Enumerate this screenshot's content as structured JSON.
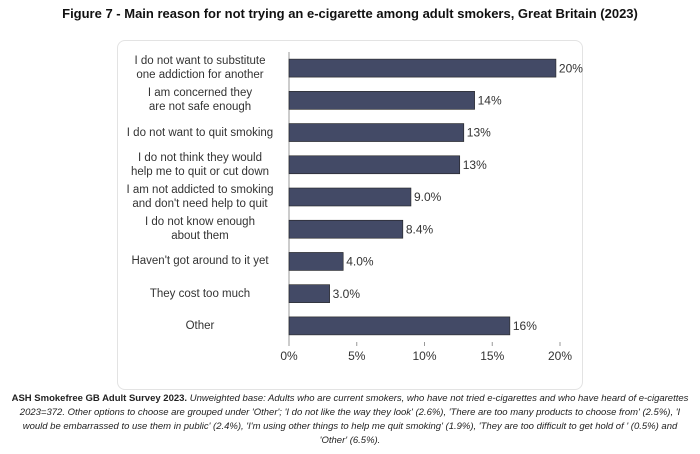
{
  "chart_data": {
    "type": "barh",
    "title": "Figure 7 - Main reason for not trying an e-cigarette among adult smokers, Great Britain (2023)",
    "categories": [
      "I do not want to substitute\none addiction for another",
      "I am concerned they\nare not safe enough",
      "I do not want to quit smoking",
      "I do not think they would\nhelp me to quit or cut down",
      "I am not addicted to smoking\nand don't need help to quit",
      "I do not know enough\nabout them",
      "Haven't got around to it yet",
      "They cost too much",
      "Other"
    ],
    "values": [
      19.7,
      13.7,
      12.9,
      12.6,
      9.0,
      8.4,
      4.0,
      3.0,
      16.3
    ],
    "value_labels": [
      "20%",
      "14%",
      "13%",
      "13%",
      "9.0%",
      "8.4%",
      "4.0%",
      "3.0%",
      "16%"
    ],
    "color": "#434a66",
    "xlim": [
      0,
      20
    ],
    "xticks": [
      {
        "value": 0,
        "label": "0%"
      },
      {
        "value": 5,
        "label": "5%"
      },
      {
        "value": 10,
        "label": "10%"
      },
      {
        "value": 15,
        "label": "15%"
      },
      {
        "value": 20,
        "label": "20%"
      }
    ],
    "source": "ASH Smokefree GB Adult Survey 2023.",
    "note": "Unweighted base: Adults who are current smokers, who have not tried e-cigarettes and who have heard of e-cigarettes 2023=372. Other options to choose are grouped under 'Other'; 'I do not like the way they look' (2.6%), 'There are too many products to choose from' (2.5%), 'I would be embarrassed to use them in public' (2.4%), 'I'm using other things to help me quit smoking' (1.9%), 'They are too difficult to get hold of ' (0.5%) and 'Other' (6.5%)."
  }
}
